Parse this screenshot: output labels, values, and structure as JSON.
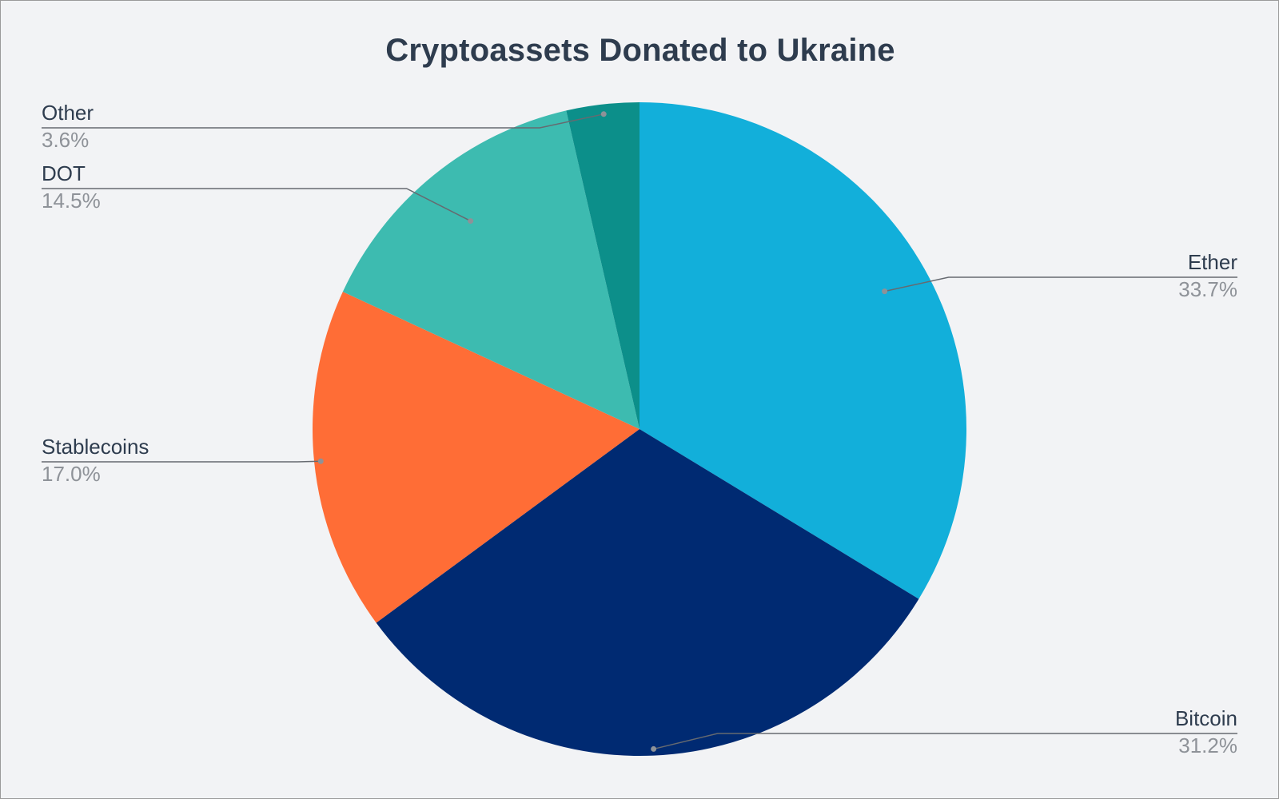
{
  "chart_data": {
    "type": "pie",
    "title": "Cryptoassets Donated to Ukraine",
    "start_angle_deg": 0,
    "direction": "clockwise",
    "slices": [
      {
        "label": "Ether",
        "value": 33.7,
        "value_label": "33.7%",
        "color": "#12afda"
      },
      {
        "label": "Bitcoin",
        "value": 31.2,
        "value_label": "31.2%",
        "color": "#002a72"
      },
      {
        "label": "Stablecoins",
        "value": 17.0,
        "value_label": "17.0%",
        "color": "#ff6d36"
      },
      {
        "label": "DOT",
        "value": 14.5,
        "value_label": "14.5%",
        "color": "#3dbbb0"
      },
      {
        "label": "Other",
        "value": 3.6,
        "value_label": "3.6%",
        "color": "#0c8f8a"
      }
    ]
  }
}
